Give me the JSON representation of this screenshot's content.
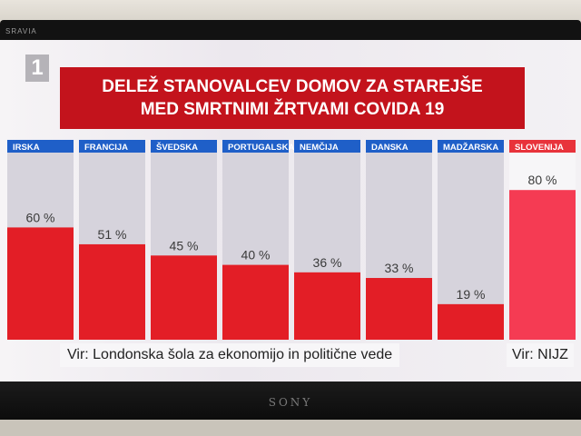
{
  "tv": {
    "brand": "SONY",
    "bezel_label": "SRAVIA"
  },
  "channel_logo": "1",
  "chart_data": {
    "type": "bar",
    "title_line1": "DELEŽ STANOVALCEV DOMOV ZA STAREJŠE",
    "title_line2": "MED SMRTNIMI ŽRTVAMI COVIDA 19",
    "categories": [
      "IRSKA",
      "FRANCIJA",
      "ŠVEDSKA",
      "PORTUGALSKA",
      "NEMČIJA",
      "DANSKA",
      "MADŽARSKA",
      "SLOVENIJA"
    ],
    "values": [
      60,
      51,
      45,
      40,
      36,
      33,
      19,
      80
    ],
    "value_labels": [
      "60 %",
      "51 %",
      "45 %",
      "40 %",
      "36 %",
      "33 %",
      "19 %",
      "80 %"
    ],
    "ylim": [
      0,
      100
    ],
    "colors": {
      "bar": "#e31e26",
      "highlight_bar": "#f53b53",
      "track": "#d6d3dc",
      "highlight_track": "#f7f6f8",
      "header": "#1f5fc8",
      "highlight_header": "#e8333b",
      "title_bg": "#c3131c"
    },
    "highlight_index": 7
  },
  "sources": {
    "left": "Vir: Londonska šola za ekonomijo in politične vede",
    "right": "Vir: NIJZ"
  }
}
